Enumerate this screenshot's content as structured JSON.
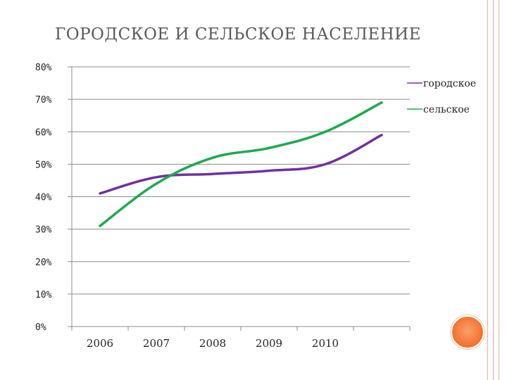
{
  "slide": {
    "title": "ГОРОДСКОЕ И СЕЛЬСКОЕ НАСЕЛЕНИЕ",
    "accent_colors": {
      "border_lines": [
        "#f4b183",
        "#c9a3c8",
        "#f4b183"
      ],
      "circle": "#f26f2c"
    },
    "decoration_icon": "orange-circle"
  },
  "chart_data": {
    "type": "line",
    "title": "",
    "xlabel": "",
    "ylabel": "",
    "categories": [
      "2006",
      "2007",
      "2008",
      "2009",
      "2010",
      ""
    ],
    "ylim": [
      0,
      80
    ],
    "yticks": [
      "0%",
      "10%",
      "20%",
      "30%",
      "40%",
      "50%",
      "60%",
      "70%",
      "80%"
    ],
    "grid": true,
    "legend": "top-right",
    "series": [
      {
        "name": "городское",
        "color": "#7030a0",
        "values": [
          41,
          46,
          47,
          48,
          50,
          59
        ]
      },
      {
        "name": "сельское",
        "color": "#1fa84f",
        "values": [
          31,
          44,
          52,
          55,
          60,
          69
        ]
      }
    ]
  }
}
